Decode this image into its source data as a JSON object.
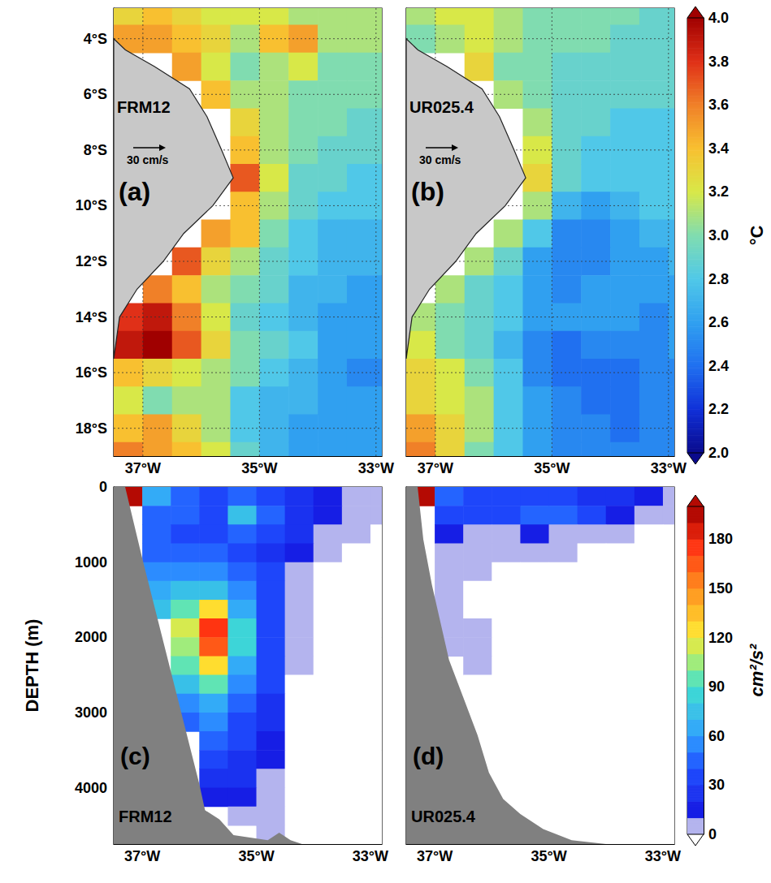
{
  "chart_data": [
    {
      "type": "heatmap",
      "title": "(a)",
      "subtitle": "FRM12",
      "annotations": [
        "30 cm/s"
      ],
      "x": [
        -37.25,
        -36.75,
        -36.25,
        -35.75,
        -35.25,
        -34.75,
        -34.25,
        -33.75,
        -33.25,
        -32.75
      ],
      "y": [
        -3,
        -4,
        -5,
        -6,
        -7,
        -8,
        -9,
        -10,
        -11,
        -12,
        -13,
        -14,
        -15,
        -16,
        -17,
        -18,
        -19
      ],
      "values": [
        [
          3.3,
          3.4,
          3.3,
          3.2,
          3.2,
          3.2,
          3.1,
          3.1,
          3.1,
          3.1
        ],
        [
          3.5,
          3.5,
          3.4,
          3.3,
          3.1,
          3.4,
          3.5,
          3.1,
          3.1,
          3.1
        ],
        [
          null,
          null,
          3.5,
          3.2,
          3.0,
          3.1,
          3.2,
          3.0,
          3.0,
          3.0
        ],
        [
          null,
          null,
          null,
          3.4,
          3.1,
          3.1,
          3.0,
          3.0,
          3.0,
          3.0
        ],
        [
          null,
          null,
          null,
          null,
          3.3,
          3.1,
          3.0,
          3.0,
          2.9,
          2.9
        ],
        [
          null,
          null,
          null,
          null,
          3.4,
          3.1,
          3.0,
          2.9,
          2.9,
          2.9
        ],
        [
          null,
          null,
          null,
          null,
          3.7,
          3.2,
          2.9,
          2.9,
          2.8,
          2.8
        ],
        [
          null,
          null,
          null,
          null,
          3.4,
          3.1,
          2.9,
          2.8,
          2.8,
          2.8
        ],
        [
          null,
          null,
          null,
          3.5,
          3.4,
          3.0,
          2.8,
          2.7,
          2.7,
          2.7
        ],
        [
          null,
          null,
          3.7,
          3.3,
          3.1,
          2.9,
          2.8,
          2.7,
          2.7,
          2.7
        ],
        [
          null,
          3.6,
          3.4,
          3.1,
          3.0,
          2.9,
          2.7,
          2.7,
          2.6,
          2.6
        ],
        [
          3.8,
          3.9,
          3.6,
          3.2,
          2.9,
          2.8,
          2.7,
          2.6,
          2.6,
          2.6
        ],
        [
          3.9,
          4.0,
          3.7,
          3.3,
          3.0,
          2.9,
          2.8,
          2.6,
          2.6,
          2.6
        ],
        [
          3.4,
          3.3,
          3.2,
          3.1,
          3.0,
          2.8,
          2.7,
          2.6,
          2.5,
          2.5
        ],
        [
          3.2,
          3.0,
          3.1,
          3.1,
          2.8,
          2.7,
          2.7,
          2.6,
          2.6,
          2.6
        ],
        [
          3.4,
          3.5,
          3.3,
          3.1,
          2.8,
          2.7,
          2.6,
          2.6,
          2.6,
          2.6
        ],
        [
          3.6,
          3.5,
          3.4,
          3.2,
          2.9,
          2.7,
          2.6,
          2.6,
          2.6,
          2.6
        ]
      ],
      "land": {
        "x": [
          -37.5,
          -37.3,
          -36.8,
          -36.2,
          -35.9,
          -35.65,
          -35.45,
          -35.8,
          -36.3,
          -36.65,
          -37.1,
          -37.4,
          -37.5
        ],
        "y": [
          -4.0,
          -4.4,
          -5.0,
          -5.8,
          -6.8,
          -8.0,
          -9.0,
          -10.0,
          -11.0,
          -12.0,
          -13.0,
          -14.0,
          -15.5
        ]
      },
      "xlim": [
        -37.5,
        -32.9
      ],
      "ylim": [
        -19,
        -2.9
      ],
      "xticks": [
        {
          "value": -37,
          "label": "37°W"
        },
        {
          "value": -35,
          "label": "35°W"
        },
        {
          "value": -33,
          "label": "33°W"
        }
      ],
      "yticks": [
        {
          "value": -4,
          "label": "4°S"
        },
        {
          "value": -6,
          "label": "6°S"
        },
        {
          "value": -8,
          "label": "8°S"
        },
        {
          "value": -10,
          "label": "10°S"
        },
        {
          "value": -12,
          "label": "12°S"
        },
        {
          "value": -14,
          "label": "14°S"
        },
        {
          "value": -16,
          "label": "16°S"
        },
        {
          "value": -18,
          "label": "18°S"
        }
      ],
      "grid": true
    },
    {
      "type": "heatmap",
      "title": "(b)",
      "subtitle": "UR025.4",
      "annotations": [
        "30 cm/s"
      ],
      "x": [
        -37.25,
        -36.75,
        -36.25,
        -35.75,
        -35.25,
        -34.75,
        -34.25,
        -33.75,
        -33.25,
        -32.75
      ],
      "y": [
        -3,
        -4,
        -5,
        -6,
        -7,
        -8,
        -9,
        -10,
        -11,
        -12,
        -13,
        -14,
        -15,
        -16,
        -17,
        -18,
        -19
      ],
      "values": [
        [
          3.1,
          3.2,
          3.2,
          3.1,
          3.0,
          3.0,
          3.0,
          3.0,
          2.9,
          2.9
        ],
        [
          3.0,
          3.1,
          3.2,
          3.1,
          3.0,
          3.0,
          3.0,
          2.9,
          2.9,
          2.9
        ],
        [
          null,
          null,
          3.3,
          3.0,
          3.0,
          2.9,
          2.9,
          2.9,
          2.9,
          2.9
        ],
        [
          null,
          null,
          null,
          3.1,
          3.0,
          2.9,
          2.9,
          2.9,
          2.9,
          2.9
        ],
        [
          null,
          null,
          null,
          null,
          3.1,
          2.9,
          2.9,
          2.8,
          2.8,
          2.8
        ],
        [
          null,
          null,
          null,
          null,
          3.2,
          2.9,
          2.8,
          2.8,
          2.8,
          2.8
        ],
        [
          null,
          null,
          null,
          null,
          3.3,
          2.9,
          2.8,
          2.8,
          2.8,
          2.8
        ],
        [
          null,
          null,
          null,
          null,
          3.1,
          2.7,
          2.6,
          2.7,
          2.8,
          2.8
        ],
        [
          null,
          null,
          null,
          3.1,
          2.8,
          2.5,
          2.5,
          2.6,
          2.7,
          2.7
        ],
        [
          null,
          null,
          3.1,
          2.9,
          2.6,
          2.5,
          2.5,
          2.6,
          2.6,
          2.7
        ],
        [
          null,
          3.1,
          2.9,
          2.8,
          2.6,
          2.5,
          2.6,
          2.6,
          2.6,
          2.6
        ],
        [
          3.1,
          3.0,
          2.9,
          2.8,
          2.6,
          2.6,
          2.6,
          2.6,
          2.5,
          2.6
        ],
        [
          3.2,
          3.0,
          2.9,
          2.7,
          2.5,
          2.4,
          2.5,
          2.5,
          2.5,
          2.6
        ],
        [
          3.3,
          3.2,
          3.0,
          2.8,
          2.5,
          2.4,
          2.4,
          2.4,
          2.5,
          2.5
        ],
        [
          3.3,
          3.2,
          3.1,
          2.8,
          2.6,
          2.5,
          2.4,
          2.4,
          2.5,
          2.5
        ],
        [
          3.5,
          3.3,
          3.1,
          2.8,
          2.6,
          2.5,
          2.5,
          2.4,
          2.5,
          2.5
        ],
        [
          3.6,
          3.3,
          3.0,
          2.8,
          2.6,
          2.5,
          2.5,
          2.5,
          2.5,
          2.5
        ]
      ],
      "land": {
        "x": [
          -37.5,
          -37.3,
          -36.8,
          -36.2,
          -35.9,
          -35.65,
          -35.45,
          -35.8,
          -36.3,
          -36.65,
          -37.1,
          -37.4,
          -37.5
        ],
        "y": [
          -4.0,
          -4.4,
          -5.0,
          -5.8,
          -6.8,
          -8.0,
          -9.0,
          -10.0,
          -11.0,
          -12.0,
          -13.0,
          -14.0,
          -15.5
        ]
      },
      "xlim": [
        -37.5,
        -32.9
      ],
      "ylim": [
        -19,
        -2.9
      ],
      "xticks": [
        {
          "value": -37,
          "label": "37°W"
        },
        {
          "value": -35,
          "label": "35°W"
        },
        {
          "value": -33,
          "label": "33°W"
        }
      ],
      "yticks": [
        {
          "value": -4,
          "label": "4°S"
        },
        {
          "value": -6,
          "label": "6°S"
        },
        {
          "value": -8,
          "label": "8°S"
        },
        {
          "value": -10,
          "label": "10°S"
        },
        {
          "value": -12,
          "label": "12°S"
        },
        {
          "value": -14,
          "label": "14°S"
        },
        {
          "value": -16,
          "label": "16°S"
        },
        {
          "value": -18,
          "label": "18°S"
        }
      ],
      "grid": true,
      "tick_labels": "x",
      "colorbar": {
        "label": "°C",
        "lim": [
          2,
          4
        ],
        "ticks": [
          {
            "value": 2,
            "label": "2.0"
          },
          2.2,
          2.4,
          2.6,
          2.8,
          {
            "value": 3,
            "label": "3.0"
          },
          3.2,
          3.4,
          3.6,
          3.8,
          {
            "value": 4,
            "label": "4.0"
          }
        ]
      }
    },
    {
      "type": "heatmap",
      "title": "(c)",
      "subtitle": "FRM12",
      "ylabel": "DEPTH (m)",
      "x": [
        -37.25,
        -36.75,
        -36.25,
        -35.75,
        -35.25,
        -34.75,
        -34.25,
        -33.75,
        -33.25,
        -32.75
      ],
      "y": [
        125,
        375,
        625,
        875,
        1125,
        1375,
        1625,
        1875,
        2125,
        2375,
        2625,
        2875,
        3125,
        3375,
        3625,
        3875,
        4125,
        4375,
        4625
      ],
      "values": [
        [
          190,
          60,
          40,
          35,
          40,
          35,
          25,
          15,
          8,
          5
        ],
        [
          null,
          45,
          40,
          35,
          70,
          45,
          25,
          12,
          6,
          3
        ],
        [
          null,
          40,
          35,
          35,
          40,
          35,
          20,
          8,
          3,
          0
        ],
        [
          null,
          45,
          45,
          40,
          30,
          25,
          12,
          3,
          0,
          0
        ],
        [
          null,
          50,
          55,
          55,
          40,
          30,
          8,
          0,
          0,
          0
        ],
        [
          null,
          60,
          75,
          75,
          50,
          30,
          5,
          0,
          0,
          0
        ],
        [
          null,
          70,
          95,
          120,
          65,
          35,
          5,
          0,
          0,
          0
        ],
        [
          null,
          null,
          110,
          170,
          80,
          35,
          5,
          0,
          0,
          0
        ],
        [
          null,
          null,
          105,
          160,
          80,
          35,
          3,
          0,
          0,
          0
        ],
        [
          null,
          null,
          90,
          120,
          65,
          35,
          3,
          0,
          0,
          0
        ],
        [
          null,
          null,
          70,
          90,
          55,
          30,
          0,
          0,
          0,
          0
        ],
        [
          null,
          null,
          55,
          65,
          45,
          25,
          0,
          0,
          0,
          0
        ],
        [
          null,
          null,
          45,
          50,
          35,
          20,
          0,
          0,
          0,
          0
        ],
        [
          null,
          null,
          null,
          40,
          30,
          15,
          0,
          0,
          0,
          0
        ],
        [
          null,
          null,
          null,
          30,
          25,
          10,
          0,
          0,
          0,
          0
        ],
        [
          null,
          null,
          null,
          25,
          20,
          8,
          0,
          0,
          0,
          0
        ],
        [
          null,
          null,
          null,
          15,
          15,
          5,
          0,
          0,
          0,
          0
        ],
        [
          null,
          null,
          null,
          null,
          8,
          5,
          0,
          0,
          0,
          0
        ],
        [
          null,
          null,
          null,
          null,
          null,
          3,
          0,
          0,
          0,
          0
        ]
      ],
      "bottom": {
        "x": [
          -37.5,
          -37.3,
          -37.0,
          -36.75,
          -36.5,
          -36.25,
          -36.0,
          -35.9,
          -35.65,
          -35.4,
          -34.8,
          -34.6,
          -34.4,
          -34.2,
          -32.8
        ],
        "depth": [
          0,
          0,
          950,
          1700,
          2450,
          3200,
          3950,
          4300,
          4420,
          4630,
          4700,
          4600,
          4700,
          4800,
          4800
        ]
      },
      "xlim": [
        -37.5,
        -32.8
      ],
      "ylim": [
        0,
        4750
      ],
      "xticks": [
        {
          "value": -37,
          "label": "37°W"
        },
        {
          "value": -35,
          "label": "35°W"
        },
        {
          "value": -33,
          "label": "33°W"
        }
      ],
      "yticks": [
        0,
        1000,
        2000,
        3000,
        4000
      ],
      "grid": false
    },
    {
      "type": "heatmap",
      "title": "(d)",
      "subtitle": "UR025.4",
      "x": [
        -37.25,
        -36.75,
        -36.25,
        -35.75,
        -35.25,
        -34.75,
        -34.25,
        -33.75,
        -33.25,
        -32.75
      ],
      "y": [
        125,
        375,
        625,
        875,
        1125,
        1375,
        1625,
        1875,
        2125,
        2375,
        2625,
        2875,
        3125,
        3375,
        3625,
        3875,
        4125,
        4375,
        4625
      ],
      "values": [
        [
          190,
          45,
          35,
          30,
          30,
          30,
          25,
          20,
          10,
          5
        ],
        [
          null,
          30,
          30,
          30,
          40,
          45,
          30,
          10,
          5,
          3
        ],
        [
          null,
          10,
          8,
          8,
          10,
          8,
          5,
          3,
          0,
          0
        ],
        [
          null,
          5,
          5,
          5,
          5,
          3,
          0,
          0,
          0,
          0
        ],
        [
          null,
          5,
          3,
          0,
          0,
          0,
          0,
          0,
          0,
          0
        ],
        [
          null,
          5,
          0,
          0,
          0,
          0,
          0,
          0,
          0,
          0
        ],
        [
          null,
          5,
          0,
          0,
          0,
          0,
          0,
          0,
          0,
          0
        ],
        [
          null,
          3,
          3,
          0,
          0,
          0,
          0,
          0,
          0,
          0
        ],
        [
          null,
          3,
          3,
          0,
          0,
          0,
          0,
          0,
          0,
          0
        ],
        [
          null,
          null,
          3,
          0,
          0,
          0,
          0,
          0,
          0,
          0
        ],
        [
          null,
          null,
          0,
          0,
          0,
          0,
          0,
          0,
          0,
          0
        ],
        [
          null,
          null,
          0,
          0,
          0,
          0,
          0,
          0,
          0,
          0
        ],
        [
          null,
          null,
          0,
          0,
          0,
          0,
          0,
          0,
          0,
          0
        ],
        [
          null,
          null,
          null,
          0,
          0,
          0,
          0,
          0,
          0,
          0
        ],
        [
          null,
          null,
          null,
          0,
          0,
          0,
          0,
          0,
          0,
          0
        ],
        [
          null,
          null,
          null,
          0,
          0,
          0,
          0,
          0,
          0,
          0
        ],
        [
          null,
          null,
          null,
          0,
          0,
          0,
          0,
          0,
          0,
          0
        ],
        [
          null,
          null,
          null,
          null,
          0,
          0,
          0,
          0,
          0,
          0
        ],
        [
          null,
          null,
          null,
          null,
          null,
          0,
          0,
          0,
          0,
          0
        ]
      ],
      "bottom": {
        "x": [
          -37.5,
          -37.3,
          -37.2,
          -37.05,
          -36.9,
          -36.75,
          -36.5,
          -36.25,
          -36.05,
          -35.8,
          -35.5,
          -35.1,
          -34.6,
          -34.0,
          -32.8
        ],
        "depth": [
          0,
          0,
          700,
          1300,
          1800,
          2300,
          2800,
          3300,
          3800,
          4150,
          4350,
          4550,
          4700,
          4800,
          4800
        ]
      },
      "xlim": [
        -37.5,
        -32.8
      ],
      "ylim": [
        0,
        4750
      ],
      "xticks": [
        {
          "value": -37,
          "label": "37°W"
        },
        {
          "value": -35,
          "label": "35°W"
        },
        {
          "value": -33,
          "label": "33°W"
        }
      ],
      "yticks": [
        0,
        1000,
        2000,
        3000,
        4000
      ],
      "grid": false,
      "tick_labels": "x",
      "colorbar": {
        "label": "cm²/s²",
        "lim": [
          0,
          200
        ],
        "ticks": [
          0,
          30,
          60,
          90,
          120,
          150,
          180
        ]
      }
    }
  ]
}
